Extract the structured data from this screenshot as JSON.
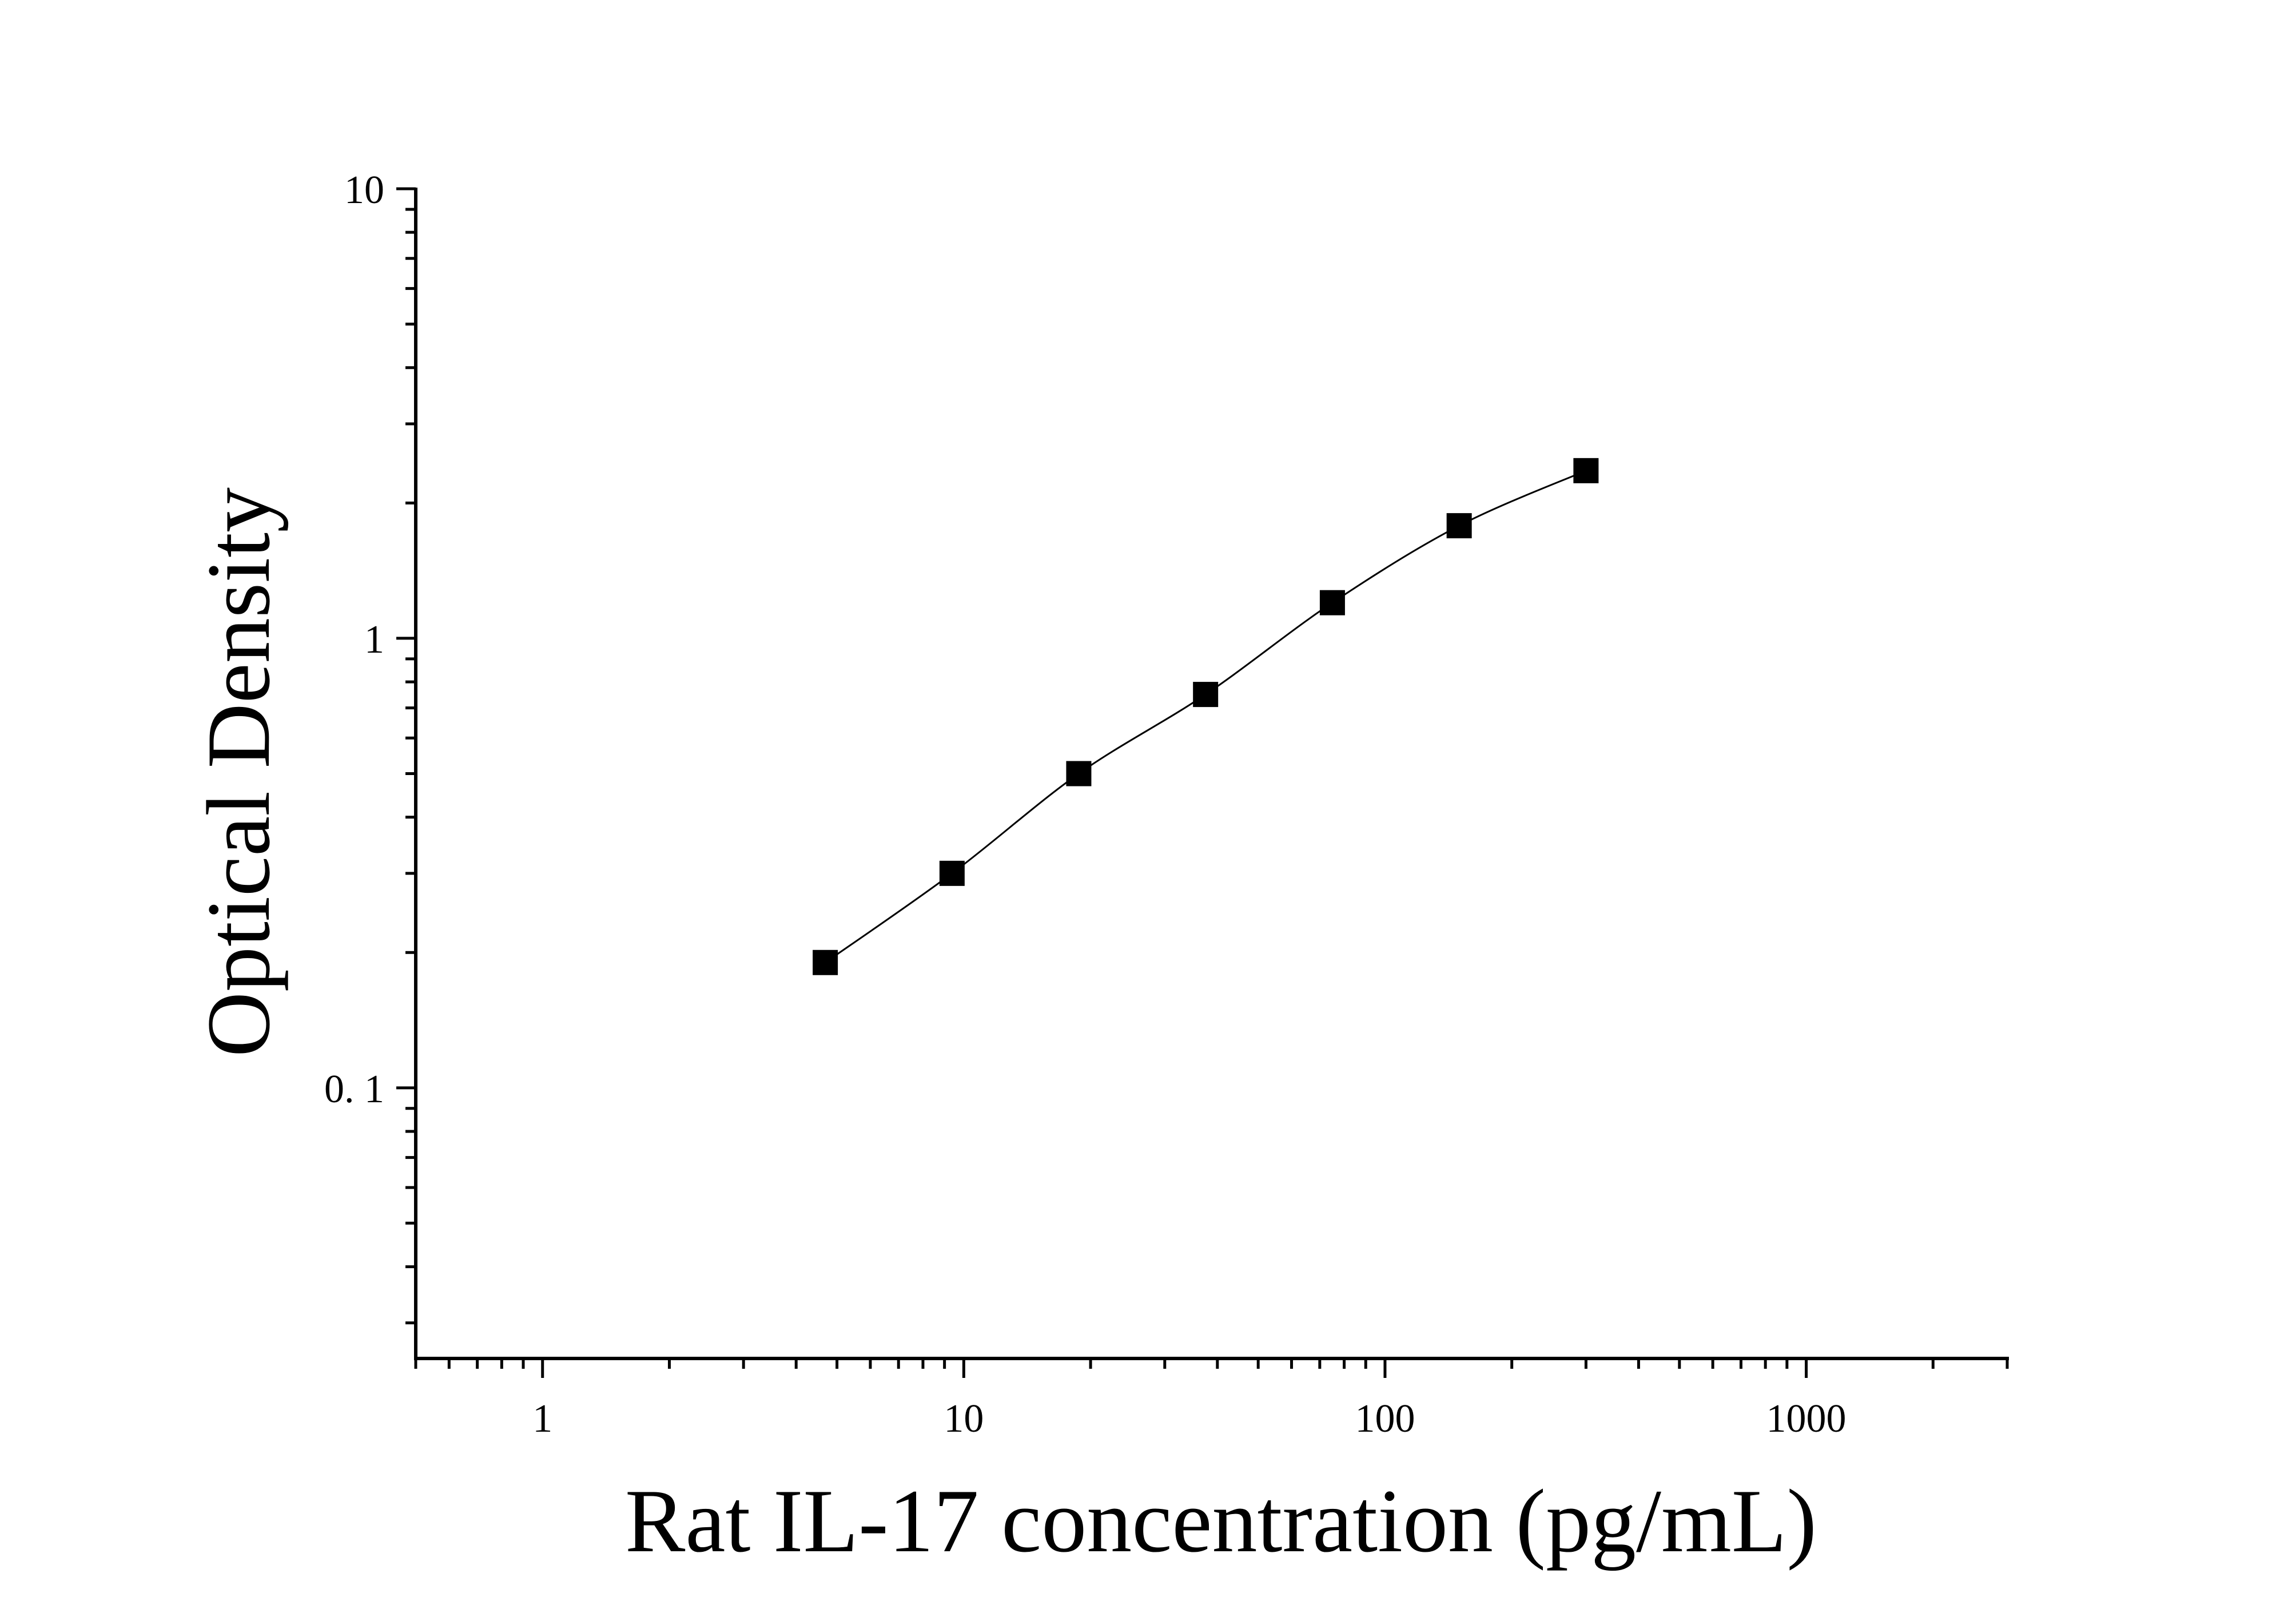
{
  "chart_data": {
    "type": "scatter",
    "xlabel": "Rat IL-17 concentration (pg/mL)",
    "ylabel": "Optical Density",
    "x_scale": "log",
    "y_scale": "log",
    "xlim": [
      0.5,
      3000
    ],
    "ylim": [
      0.025,
      10
    ],
    "x_ticks": [
      {
        "value": 1,
        "label": "1"
      },
      {
        "value": 10,
        "label": "10"
      },
      {
        "value": 100,
        "label": "100"
      },
      {
        "value": 1000,
        "label": "1000"
      }
    ],
    "y_ticks": [
      {
        "value": 0.1,
        "label": "0. 1"
      },
      {
        "value": 1,
        "label": "1"
      },
      {
        "value": 10,
        "label": "10"
      }
    ],
    "grid": false,
    "legend": "none",
    "series": [
      {
        "x": [
          4.69,
          9.38,
          18.75,
          37.5,
          75,
          150,
          300
        ],
        "y": [
          0.19,
          0.3,
          0.5,
          0.75,
          1.2,
          1.78,
          2.36
        ],
        "marker": "square",
        "fit_curve": true
      }
    ],
    "colors": {
      "marker": "#000000",
      "line": "#000000",
      "axis": "#000000"
    }
  }
}
